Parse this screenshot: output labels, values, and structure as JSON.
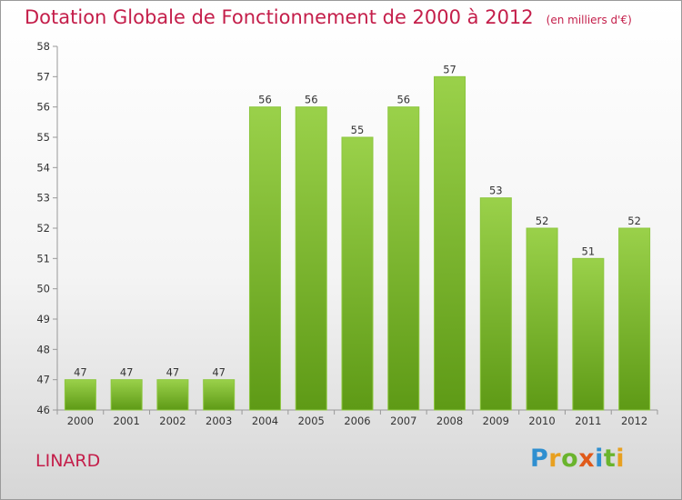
{
  "header": {
    "title": "Dotation Globale de Fonctionnement de 2000 à 2012",
    "unit": "(en milliers d'€)"
  },
  "commune": "LINARD",
  "logo_text": "Proxiti",
  "colors": {
    "title": "#c41e4a",
    "bar_light": "#9ad14a",
    "bar_dark": "#5e9a16"
  },
  "chart_data": {
    "type": "bar",
    "title": "Dotation Globale de Fonctionnement de 2000 à 2012",
    "subtitle": "(en milliers d'€)",
    "xlabel": "",
    "ylabel": "",
    "categories": [
      "2000",
      "2001",
      "2002",
      "2003",
      "2004",
      "2005",
      "2006",
      "2007",
      "2008",
      "2009",
      "2010",
      "2011",
      "2012"
    ],
    "values": [
      47,
      47,
      47,
      47,
      56,
      56,
      55,
      56,
      57,
      53,
      52,
      51,
      52
    ],
    "ylim": [
      46,
      58
    ],
    "yticks": [
      46,
      47,
      48,
      49,
      50,
      51,
      52,
      53,
      54,
      55,
      56,
      57,
      58
    ],
    "grid": false,
    "legend": "none"
  }
}
